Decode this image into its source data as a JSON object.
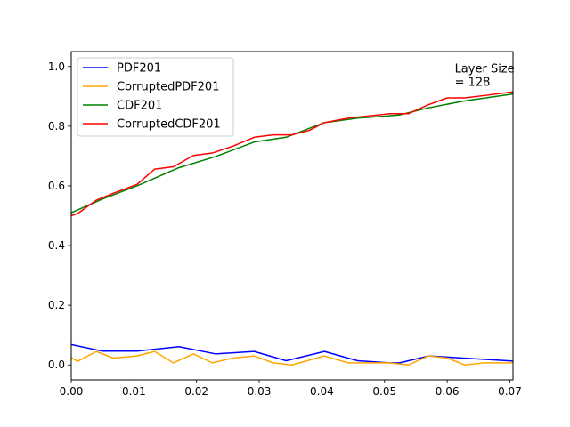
{
  "chart_data": {
    "type": "line",
    "title": "",
    "xlabel": "",
    "ylabel": "",
    "xlim": [
      0.0,
      0.0705
    ],
    "ylim": [
      -0.05,
      1.05
    ],
    "grid": false,
    "legend_position": "top-left",
    "x_ticks": [
      0.0,
      0.01,
      0.02,
      0.03,
      0.04,
      0.05,
      0.06,
      0.07
    ],
    "x_tick_labels": [
      "0.00",
      "0.01",
      "0.02",
      "0.03",
      "0.04",
      "0.05",
      "0.06",
      "0.07"
    ],
    "y_ticks": [
      0.0,
      0.2,
      0.4,
      0.6,
      0.8,
      1.0
    ],
    "y_tick_labels": [
      "0.0",
      "0.2",
      "0.4",
      "0.6",
      "0.8",
      "1.0"
    ],
    "annotation": {
      "lines": [
        "Layer Size",
        "= 128"
      ],
      "x": 0.0612,
      "y": 0.98
    },
    "series": [
      {
        "name": "PDF201",
        "color": "#0000ff",
        "x": [
          0.0,
          0.005,
          0.0105,
          0.0172,
          0.023,
          0.0292,
          0.0343,
          0.0404,
          0.0457,
          0.0508,
          0.0524,
          0.0571,
          0.0705
        ],
        "y": [
          0.068,
          0.046,
          0.046,
          0.061,
          0.037,
          0.045,
          0.014,
          0.045,
          0.014,
          0.007,
          0.007,
          0.03,
          0.013
        ]
      },
      {
        "name": "CorruptedPDF201",
        "color": "#ffa500",
        "x": [
          0.0,
          0.001,
          0.004,
          0.0067,
          0.0105,
          0.0133,
          0.0163,
          0.0195,
          0.0225,
          0.0258,
          0.0292,
          0.0322,
          0.0352,
          0.0404,
          0.0442,
          0.0508,
          0.0538,
          0.057,
          0.06,
          0.0628,
          0.066,
          0.0705
        ],
        "y": [
          0.025,
          0.012,
          0.045,
          0.023,
          0.03,
          0.045,
          0.007,
          0.037,
          0.007,
          0.023,
          0.03,
          0.007,
          0.0,
          0.03,
          0.007,
          0.007,
          0.0,
          0.03,
          0.023,
          0.0,
          0.007,
          0.007
        ]
      },
      {
        "name": "CDF201",
        "color": "#008000",
        "x": [
          0.0,
          0.005,
          0.0105,
          0.0172,
          0.023,
          0.0292,
          0.0343,
          0.0404,
          0.0457,
          0.0508,
          0.0524,
          0.0571,
          0.0628,
          0.0705
        ],
        "y": [
          0.51,
          0.556,
          0.6,
          0.661,
          0.698,
          0.747,
          0.763,
          0.812,
          0.827,
          0.835,
          0.838,
          0.862,
          0.885,
          0.908
        ]
      },
      {
        "name": "CorruptedCDF201",
        "color": "#ff0000",
        "x": [
          0.0,
          0.001,
          0.004,
          0.0067,
          0.0105,
          0.0133,
          0.0163,
          0.0195,
          0.0225,
          0.0258,
          0.0292,
          0.0322,
          0.0352,
          0.038,
          0.0404,
          0.0442,
          0.0508,
          0.0538,
          0.057,
          0.06,
          0.0628,
          0.066,
          0.0705
        ],
        "y": [
          0.5,
          0.507,
          0.552,
          0.575,
          0.605,
          0.656,
          0.664,
          0.702,
          0.71,
          0.733,
          0.763,
          0.771,
          0.771,
          0.786,
          0.812,
          0.827,
          0.842,
          0.842,
          0.872,
          0.895,
          0.895,
          0.903,
          0.915
        ]
      }
    ]
  }
}
